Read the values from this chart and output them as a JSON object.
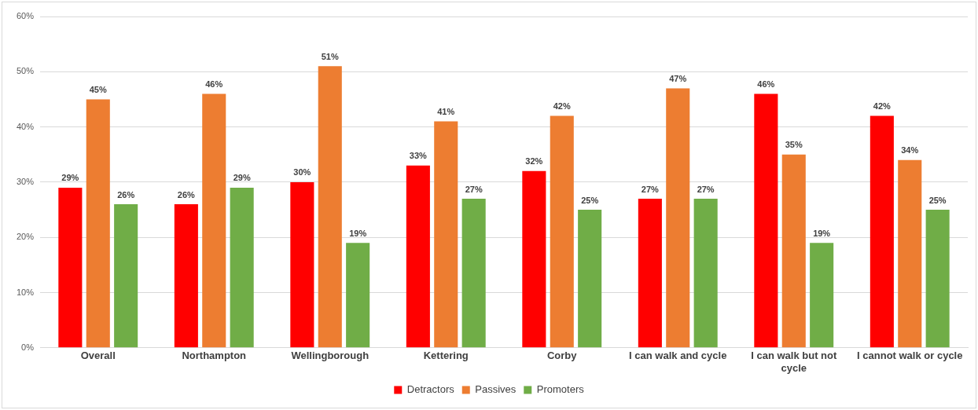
{
  "chart_data": {
    "type": "bar",
    "categories": [
      "Overall",
      "Northampton",
      "Wellingborough",
      "Kettering",
      "Corby",
      "I can walk and cycle",
      "I can walk but not cycle",
      "I cannot walk or cycle"
    ],
    "series": [
      {
        "name": "Detractors",
        "color": "#ff0000",
        "values": [
          29,
          26,
          30,
          33,
          32,
          27,
          46,
          42
        ],
        "value_labels": [
          "29%",
          "26%",
          "30%",
          "33%",
          "32%",
          "27%",
          "46%",
          "42%"
        ]
      },
      {
        "name": "Passives",
        "color": "#ed7d31",
        "values": [
          45,
          46,
          51,
          41,
          42,
          47,
          35,
          34
        ],
        "value_labels": [
          "45%",
          "46%",
          "51%",
          "41%",
          "42%",
          "47%",
          "35%",
          "34%"
        ]
      },
      {
        "name": "Promoters",
        "color": "#70ad47",
        "values": [
          26,
          29,
          19,
          27,
          25,
          27,
          19,
          25
        ],
        "value_labels": [
          "26%",
          "29%",
          "19%",
          "27%",
          "25%",
          "27%",
          "19%",
          "25%"
        ]
      }
    ],
    "ylim": [
      0,
      60
    ],
    "yticks": [
      {
        "value": 0,
        "label": "0%"
      },
      {
        "value": 10,
        "label": "10%"
      },
      {
        "value": 20,
        "label": "20%"
      },
      {
        "value": 30,
        "label": "30%"
      },
      {
        "value": 40,
        "label": "40%"
      },
      {
        "value": 50,
        "label": "50%"
      },
      {
        "value": 60,
        "label": "60%"
      }
    ],
    "grid": "y",
    "legend": "bottom"
  }
}
